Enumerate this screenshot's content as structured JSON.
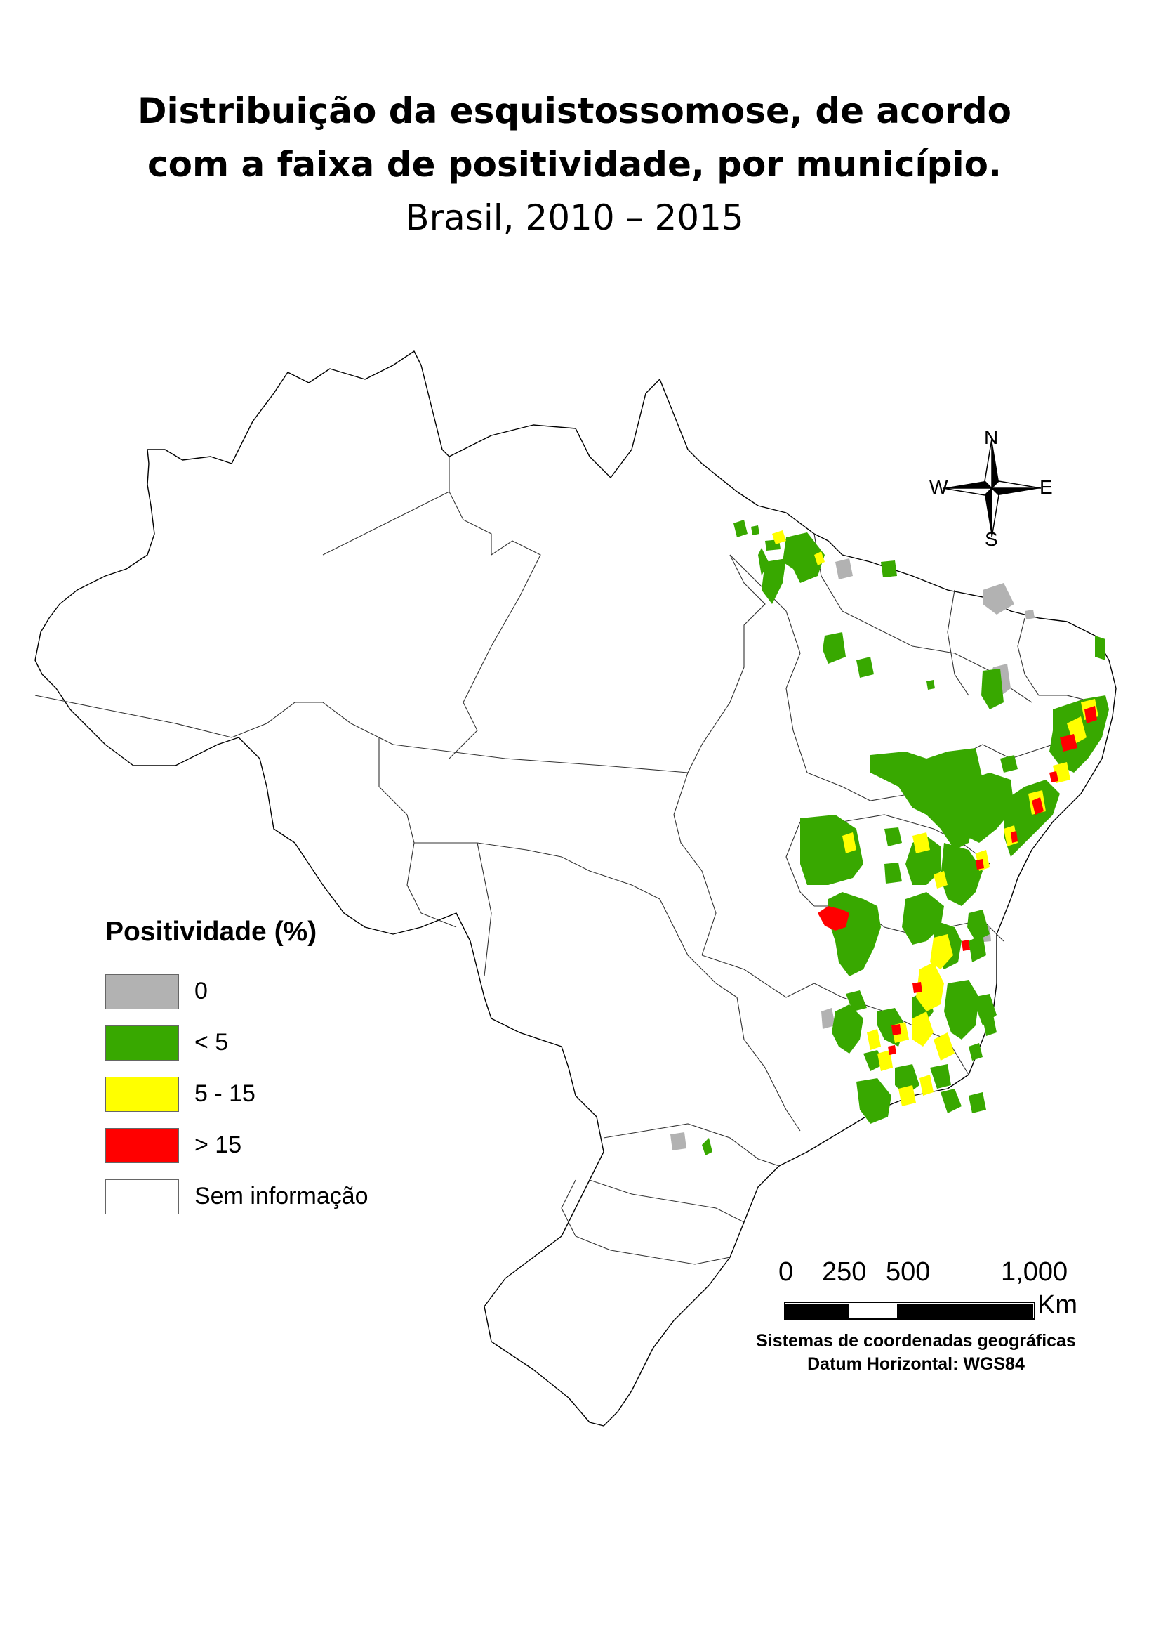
{
  "title": {
    "line1": "Distribuição da esquistossomose, de acordo",
    "line2": "com a faixa de positividade, por município.",
    "line3": "Brasil, 2010 – 2015"
  },
  "legend": {
    "title": "Positividade (%)",
    "items": [
      {
        "label": "0",
        "color": "#b2b2b2"
      },
      {
        "label": "< 5",
        "color": "#38a800"
      },
      {
        "label": "5 - 15",
        "color": "#ffff00"
      },
      {
        "label": "> 15",
        "color": "#ff0000"
      },
      {
        "label": "Sem informação",
        "color": "#ffffff"
      }
    ]
  },
  "compass": {
    "n": "N",
    "s": "S",
    "w": "W",
    "e": "E"
  },
  "scale_bar": {
    "labels": [
      "0",
      "250",
      "500",
      "1,000"
    ],
    "unit": "Km"
  },
  "credits": {
    "line1": "Sistemas de coordenadas geográficas",
    "line2": "Datum Horizontal: WGS84"
  }
}
